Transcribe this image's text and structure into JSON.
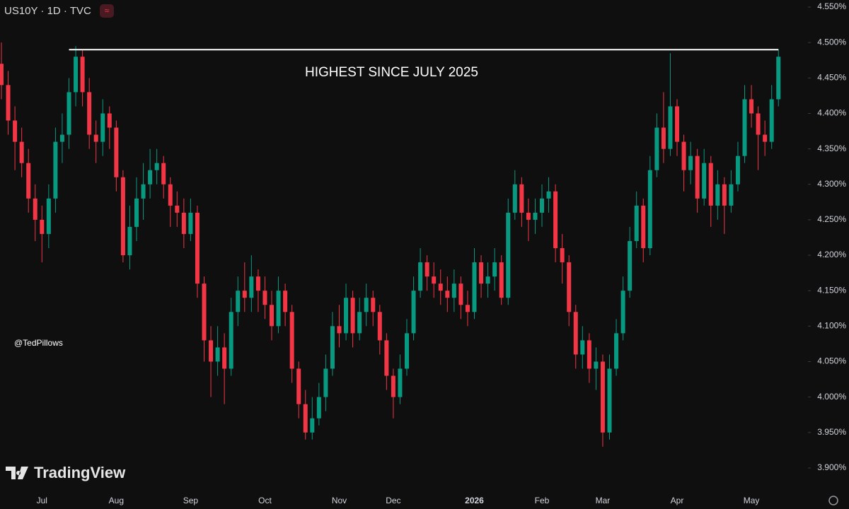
{
  "chart_data": {
    "type": "candlestick",
    "title": "US10Y · 1D · TVC",
    "annotation": {
      "text": "HIGHEST SINCE JULY 2025",
      "value": 4.49
    },
    "watermark": "@TedPillows",
    "brand": "TradingView",
    "up_color": "#089981",
    "down_color": "#f23645",
    "categories": [
      null,
      null,
      null,
      null,
      null,
      null,
      "Jul",
      null,
      null,
      null,
      null,
      null,
      null,
      null,
      null,
      null,
      null,
      "Aug",
      null,
      null,
      null,
      null,
      null,
      null,
      null,
      null,
      null,
      null,
      "Sep",
      null,
      null,
      null,
      null,
      null,
      null,
      null,
      null,
      null,
      null,
      "Oct",
      null,
      null,
      null,
      null,
      null,
      null,
      null,
      null,
      null,
      null,
      "Nov",
      null,
      null,
      null,
      null,
      null,
      null,
      null,
      "Dec",
      null,
      null,
      null,
      null,
      null,
      null,
      null,
      null,
      null,
      null,
      null,
      "2026",
      null,
      null,
      null,
      null,
      null,
      null,
      null,
      null,
      null,
      "Feb",
      null,
      null,
      null,
      null,
      null,
      null,
      null,
      null,
      "Mar",
      null,
      null,
      null,
      null,
      null,
      null,
      null,
      null,
      null,
      null,
      "Apr",
      null,
      null,
      null,
      null,
      null,
      null,
      null,
      null,
      null,
      null,
      "May",
      null,
      null,
      null,
      null
    ],
    "open": [
      4.47,
      4.44,
      4.39,
      4.36,
      4.33,
      4.28,
      4.25,
      4.23,
      4.28,
      4.36,
      4.37,
      4.43,
      4.48,
      4.43,
      4.37,
      4.36,
      4.4,
      4.38,
      4.31,
      4.2,
      4.24,
      4.28,
      4.3,
      4.32,
      4.33,
      4.3,
      4.27,
      4.26,
      4.23,
      4.26,
      4.16,
      4.08,
      4.05,
      4.07,
      4.04,
      4.12,
      4.15,
      4.14,
      4.17,
      4.15,
      4.13,
      4.1,
      4.15,
      4.12,
      4.04,
      3.99,
      3.95,
      3.97,
      4.0,
      4.04,
      4.1,
      4.09,
      4.14,
      4.09,
      4.12,
      4.14,
      4.12,
      4.08,
      4.03,
      4.0,
      4.04,
      4.09,
      4.15,
      4.19,
      4.17,
      4.16,
      4.15,
      4.14,
      4.16,
      4.13,
      4.12,
      4.19,
      4.16,
      4.17,
      4.19,
      4.14,
      4.26,
      4.3,
      4.26,
      4.25,
      4.26,
      4.28,
      4.29,
      4.21,
      4.19,
      4.12,
      4.06,
      4.08,
      4.04,
      4.05,
      3.95,
      4.04,
      4.09,
      4.15,
      4.22,
      4.27,
      4.21,
      4.32,
      4.38,
      4.35,
      4.41,
      4.36,
      4.32,
      4.34,
      4.28,
      4.33,
      4.27,
      4.3,
      4.27,
      4.3,
      4.34,
      4.42,
      4.4,
      4.37,
      4.36,
      4.42
    ],
    "high": [
      4.5,
      4.46,
      4.41,
      4.38,
      4.35,
      4.3,
      4.27,
      4.3,
      4.38,
      4.4,
      4.45,
      4.495,
      4.49,
      4.45,
      4.39,
      4.42,
      4.41,
      4.39,
      4.32,
      4.27,
      4.31,
      4.33,
      4.35,
      4.35,
      4.34,
      4.31,
      4.29,
      4.28,
      4.28,
      4.27,
      4.17,
      4.1,
      4.1,
      4.09,
      4.14,
      4.17,
      4.19,
      4.2,
      4.18,
      4.17,
      4.15,
      4.17,
      4.16,
      4.13,
      4.05,
      4.01,
      4.0,
      4.02,
      4.06,
      4.12,
      4.13,
      4.16,
      4.15,
      4.14,
      4.16,
      4.15,
      4.13,
      4.09,
      4.04,
      4.06,
      4.11,
      4.17,
      4.21,
      4.2,
      4.19,
      4.18,
      4.17,
      4.18,
      4.17,
      4.15,
      4.21,
      4.2,
      4.19,
      4.21,
      4.2,
      4.28,
      4.32,
      4.31,
      4.28,
      4.28,
      4.3,
      4.31,
      4.3,
      4.23,
      4.2,
      4.13,
      4.1,
      4.09,
      4.07,
      4.06,
      4.06,
      4.11,
      4.17,
      4.24,
      4.29,
      4.28,
      4.34,
      4.4,
      4.43,
      4.485,
      4.42,
      4.37,
      4.36,
      4.35,
      4.35,
      4.34,
      4.32,
      4.31,
      4.32,
      4.36,
      4.44,
      4.44,
      4.41,
      4.39,
      4.44,
      4.49
    ],
    "low": [
      4.42,
      4.37,
      4.32,
      4.31,
      4.26,
      4.22,
      4.19,
      4.21,
      4.26,
      4.33,
      4.35,
      4.41,
      4.41,
      4.35,
      4.33,
      4.34,
      4.35,
      4.29,
      4.19,
      4.18,
      4.22,
      4.25,
      4.28,
      4.3,
      4.28,
      4.24,
      4.24,
      4.21,
      4.22,
      4.14,
      4.05,
      4.0,
      4.03,
      3.99,
      4.03,
      4.1,
      4.12,
      4.12,
      4.12,
      4.11,
      4.08,
      4.09,
      4.1,
      4.02,
      3.97,
      3.94,
      3.94,
      3.96,
      3.98,
      4.03,
      4.07,
      4.08,
      4.07,
      4.08,
      4.1,
      4.1,
      4.06,
      4.01,
      3.97,
      3.99,
      4.03,
      4.08,
      4.14,
      4.15,
      4.14,
      4.13,
      4.12,
      4.12,
      4.11,
      4.1,
      4.11,
      4.14,
      4.14,
      4.15,
      4.13,
      4.13,
      4.25,
      4.24,
      4.22,
      4.23,
      4.24,
      4.26,
      4.19,
      4.16,
      4.1,
      4.04,
      4.04,
      4.02,
      4.01,
      3.93,
      3.94,
      4.03,
      4.08,
      4.14,
      4.21,
      4.19,
      4.2,
      4.31,
      4.33,
      4.34,
      4.34,
      4.29,
      4.3,
      4.26,
      4.27,
      4.24,
      4.25,
      4.23,
      4.26,
      4.29,
      4.33,
      4.38,
      4.32,
      4.34,
      4.35,
      4.41
    ],
    "close": [
      4.44,
      4.39,
      4.36,
      4.33,
      4.28,
      4.25,
      4.23,
      4.28,
      4.36,
      4.37,
      4.43,
      4.48,
      4.43,
      4.37,
      4.36,
      4.4,
      4.38,
      4.31,
      4.2,
      4.24,
      4.28,
      4.3,
      4.32,
      4.33,
      4.3,
      4.27,
      4.26,
      4.23,
      4.26,
      4.16,
      4.08,
      4.05,
      4.07,
      4.04,
      4.12,
      4.15,
      4.14,
      4.17,
      4.15,
      4.13,
      4.1,
      4.15,
      4.12,
      4.04,
      3.99,
      3.95,
      3.97,
      4.0,
      4.04,
      4.1,
      4.09,
      4.14,
      4.09,
      4.12,
      4.14,
      4.12,
      4.08,
      4.03,
      4.0,
      4.04,
      4.09,
      4.15,
      4.19,
      4.17,
      4.16,
      4.15,
      4.14,
      4.16,
      4.13,
      4.12,
      4.19,
      4.16,
      4.17,
      4.19,
      4.14,
      4.26,
      4.3,
      4.26,
      4.25,
      4.26,
      4.28,
      4.29,
      4.21,
      4.19,
      4.12,
      4.06,
      4.08,
      4.04,
      4.05,
      3.95,
      4.04,
      4.09,
      4.15,
      4.22,
      4.27,
      4.21,
      4.32,
      4.38,
      4.35,
      4.41,
      4.36,
      4.32,
      4.34,
      4.28,
      4.33,
      4.27,
      4.3,
      4.27,
      4.3,
      4.34,
      4.42,
      4.4,
      4.37,
      4.36,
      4.42,
      4.48
    ],
    "ylim": [
      3.872,
      4.56
    ],
    "yticks": [
      {
        "value": 3.9,
        "label": "3.900%"
      },
      {
        "value": 3.95,
        "label": "3.950%"
      },
      {
        "value": 4.0,
        "label": "4.000%"
      },
      {
        "value": 4.05,
        "label": "4.050%"
      },
      {
        "value": 4.1,
        "label": "4.100%"
      },
      {
        "value": 4.15,
        "label": "4.150%"
      },
      {
        "value": 4.2,
        "label": "4.200%"
      },
      {
        "value": 4.25,
        "label": "4.250%"
      },
      {
        "value": 4.3,
        "label": "4.300%"
      },
      {
        "value": 4.35,
        "label": "4.350%"
      },
      {
        "value": 4.4,
        "label": "4.400%"
      },
      {
        "value": 4.45,
        "label": "4.450%"
      },
      {
        "value": 4.5,
        "label": "4.500%"
      },
      {
        "value": 4.55,
        "label": "4.550%"
      }
    ]
  }
}
